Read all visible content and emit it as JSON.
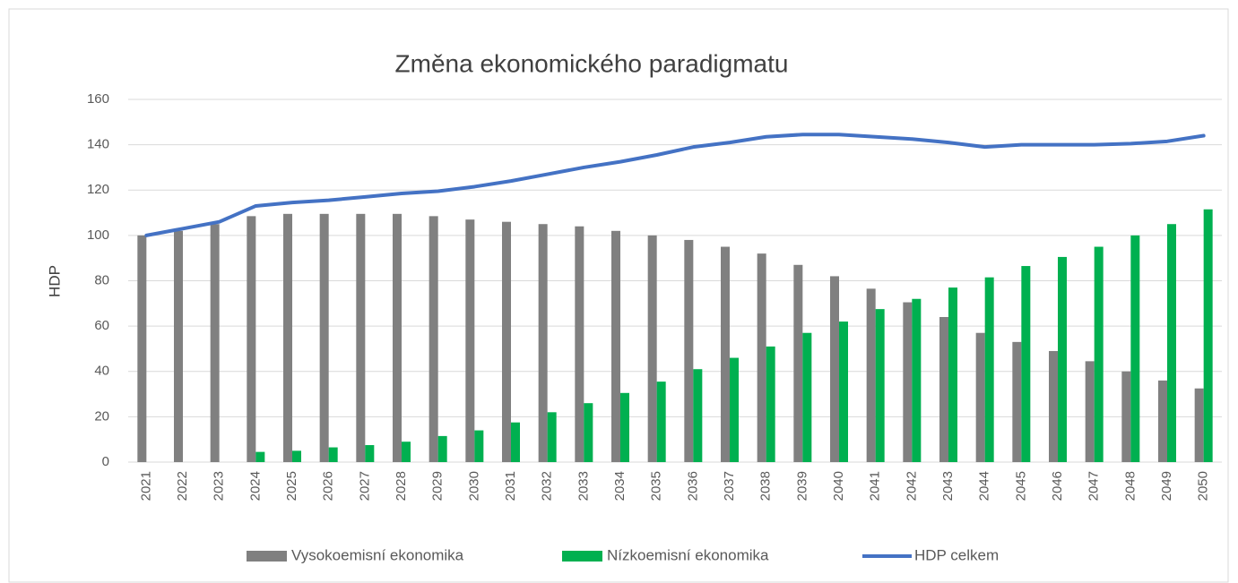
{
  "chart_data": {
    "type": "bar",
    "title": "Změna ekonomického paradigmatu",
    "y_label": "HDP",
    "categories": [
      "2021",
      "2022",
      "2023",
      "2024",
      "2025",
      "2026",
      "2027",
      "2028",
      "2029",
      "2030",
      "2031",
      "2032",
      "2033",
      "2034",
      "2035",
      "2036",
      "2037",
      "2038",
      "2039",
      "2040",
      "2041",
      "2042",
      "2043",
      "2044",
      "2045",
      "2046",
      "2047",
      "2048",
      "2049",
      "2050"
    ],
    "series": [
      {
        "name": "Vysokoemisní ekonomika",
        "type": "bar",
        "color": "#808080",
        "values": [
          100,
          102,
          105,
          108.5,
          109.5,
          109.5,
          109.5,
          109.5,
          108.5,
          107,
          106,
          105,
          104,
          102,
          100,
          98,
          95,
          92,
          87,
          82,
          76.5,
          70.5,
          64,
          57,
          53,
          49,
          44.5,
          40,
          36,
          32.5
        ]
      },
      {
        "name": "Nízkoemisní ekonomika",
        "type": "bar",
        "color": "#00b050",
        "values": [
          0,
          0,
          0,
          4.5,
          5,
          6.5,
          7.5,
          9,
          11.5,
          14,
          17.5,
          22,
          26,
          30.5,
          35.5,
          41,
          46,
          51,
          57,
          62,
          67.5,
          72,
          77,
          81.5,
          86.5,
          90.5,
          95,
          100,
          105,
          111.5
        ]
      },
      {
        "name": "HDP celkem",
        "type": "line",
        "color": "#4472c4",
        "values": [
          100,
          103,
          106,
          113,
          114.5,
          115.5,
          117,
          118.5,
          119.5,
          121.5,
          124,
          127,
          130,
          132.5,
          135.5,
          139,
          141,
          143.5,
          144.5,
          144.5,
          143.5,
          142.5,
          141,
          139,
          140,
          140,
          140,
          140.5,
          141.5,
          144
        ]
      }
    ],
    "ylim": [
      0,
      160
    ],
    "yticks": [
      0,
      20,
      40,
      60,
      80,
      100,
      120,
      140,
      160
    ],
    "grid": true,
    "legend": "bottom"
  }
}
